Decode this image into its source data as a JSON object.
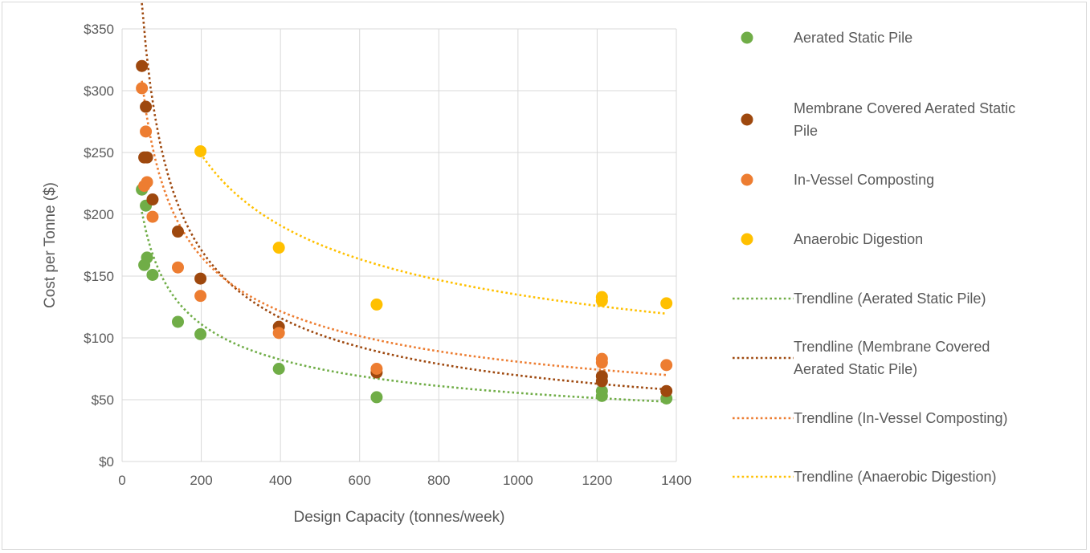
{
  "chart_data": {
    "type": "scatter",
    "title": "",
    "xlabel": "Design Capacity (tonnes/week)",
    "ylabel": "Cost per Tonne ($)",
    "xlim": [
      0,
      1400
    ],
    "ylim": [
      0,
      350
    ],
    "x_ticks": [
      0,
      200,
      400,
      600,
      800,
      1000,
      1200,
      1400
    ],
    "y_ticks": [
      0,
      50,
      100,
      150,
      200,
      250,
      300,
      350
    ],
    "y_tick_labels": [
      "$0",
      "$50",
      "$100",
      "$150",
      "$200",
      "$250",
      "$300",
      "$350"
    ],
    "x_tick_labels": [
      "0",
      "200",
      "400",
      "600",
      "800",
      "1000",
      "1200",
      "1400"
    ],
    "grid": "vertical and horizontal major gridlines",
    "legend_position": "right",
    "series": [
      {
        "name": "Aerated Static Pile",
        "color": "#70ad47",
        "points": [
          [
            50,
            220
          ],
          [
            56,
            159
          ],
          [
            60,
            207
          ],
          [
            63,
            165
          ],
          [
            77,
            151
          ],
          [
            141,
            113
          ],
          [
            198,
            103
          ],
          [
            396,
            75
          ],
          [
            643,
            52
          ],
          [
            1212,
            53
          ],
          [
            1212,
            57
          ],
          [
            1375,
            51
          ]
        ]
      },
      {
        "name": "Membrane Covered Aerated Static Pile",
        "color": "#9e480e",
        "points": [
          [
            50,
            320
          ],
          [
            56,
            246
          ],
          [
            60,
            287
          ],
          [
            63,
            246
          ],
          [
            77,
            212
          ],
          [
            141,
            186
          ],
          [
            198,
            148
          ],
          [
            396,
            109
          ],
          [
            643,
            72
          ],
          [
            1212,
            65
          ],
          [
            1212,
            69
          ],
          [
            1375,
            57
          ]
        ]
      },
      {
        "name": "In-Vessel Composting",
        "color": "#ed7d31",
        "points": [
          [
            50,
            302
          ],
          [
            56,
            223
          ],
          [
            60,
            267
          ],
          [
            63,
            226
          ],
          [
            77,
            198
          ],
          [
            141,
            157
          ],
          [
            198,
            134
          ],
          [
            396,
            104
          ],
          [
            643,
            75
          ],
          [
            1212,
            80
          ],
          [
            1212,
            83
          ],
          [
            1375,
            78
          ]
        ]
      },
      {
        "name": "Anaerobic Digestion",
        "color": "#ffc000",
        "points": [
          [
            198,
            251
          ],
          [
            396,
            173
          ],
          [
            643,
            127
          ],
          [
            1212,
            130
          ],
          [
            1212,
            133
          ],
          [
            1375,
            128
          ]
        ]
      }
    ],
    "trendlines": [
      {
        "name": "Trendline (Aerated Static Pile)",
        "color": "#70ad47",
        "x_range": [
          50,
          1375
        ],
        "equation": "y = a * x^b",
        "a": 1090,
        "b": -0.431
      },
      {
        "name": "Trendline (Membrane Covered Aerated Static Pile)",
        "color": "#9e480e",
        "x_range": [
          50,
          1375
        ],
        "equation": "y = a * x^b",
        "a": 3290,
        "b": -0.558
      },
      {
        "name": "Trendline (In-Vessel Composting)",
        "color": "#ed7d31",
        "x_range": [
          50,
          1375
        ],
        "equation": "y = a * x^b",
        "a": 1770,
        "b": -0.447
      },
      {
        "name": "Trendline (Anaerobic Digestion)",
        "color": "#ffc000",
        "x_range": [
          198,
          1375
        ],
        "equation": "y = a * x^b",
        "a": 1850,
        "b": -0.379
      }
    ],
    "legend": [
      {
        "kind": "marker",
        "lines": [
          "Aerated Static Pile"
        ],
        "color": "#70ad47"
      },
      {
        "kind": "marker",
        "lines": [
          "Membrane Covered Aerated Static",
          "Pile"
        ],
        "color": "#9e480e"
      },
      {
        "kind": "marker",
        "lines": [
          "In-Vessel Composting"
        ],
        "color": "#ed7d31"
      },
      {
        "kind": "marker",
        "lines": [
          "Anaerobic Digestion"
        ],
        "color": "#ffc000"
      },
      {
        "kind": "dotted-line",
        "lines": [
          "Trendline (Aerated Static Pile)"
        ],
        "color": "#70ad47"
      },
      {
        "kind": "dotted-line",
        "lines": [
          "Trendline (Membrane Covered",
          "Aerated Static Pile)"
        ],
        "color": "#9e480e"
      },
      {
        "kind": "dotted-line",
        "lines": [
          "Trendline (In-Vessel Composting)"
        ],
        "color": "#ed7d31"
      },
      {
        "kind": "dotted-line",
        "lines": [
          "Trendline (Anaerobic Digestion)"
        ],
        "color": "#ffc000"
      }
    ]
  }
}
